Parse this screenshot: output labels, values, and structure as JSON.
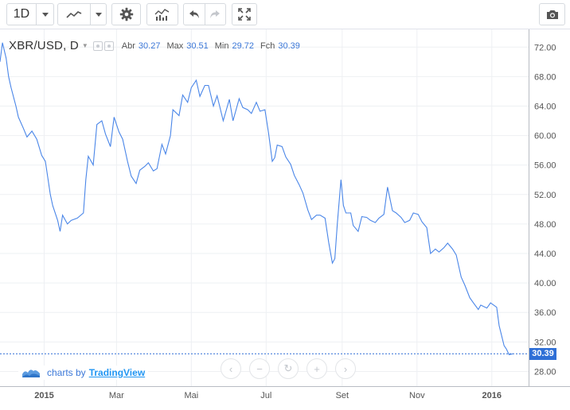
{
  "toolbar": {
    "interval": "1D",
    "icons": [
      "dropdown-caret-icon",
      "line-chart-icon",
      "dropdown-caret-icon",
      "settings-gear-icon",
      "indicators-icon",
      "undo-icon",
      "redo-icon",
      "fullscreen-icon",
      "camera-icon"
    ]
  },
  "legend": {
    "symbol": "XBR/USD, D",
    "open_label": "Abr",
    "open_value": "30.27",
    "high_label": "Max",
    "high_value": "30.51",
    "low_label": "Min",
    "low_value": "29.72",
    "close_label": "Fch",
    "close_value": "30.39"
  },
  "branding": {
    "prefix": "charts by",
    "name": "TradingView"
  },
  "last_price": "30.39",
  "colors": {
    "line": "#4a86e8",
    "price_tag": "#2f6fd6",
    "grid": "#eef0f3"
  },
  "chart_data": {
    "type": "line",
    "title": "XBR/USD, D",
    "xlabel": "",
    "ylabel": "",
    "ylim": [
      26.0,
      74.4
    ],
    "y_ticks": [
      "72.00",
      "68.00",
      "64.00",
      "60.00",
      "56.00",
      "52.00",
      "48.00",
      "44.00",
      "40.00",
      "36.00",
      "32.00",
      "28.00"
    ],
    "x_ticks": [
      {
        "label": "2015",
        "x": "2015-01-01",
        "bold": true
      },
      {
        "label": "Mar",
        "x": "2015-03-01",
        "bold": false
      },
      {
        "label": "Mai",
        "x": "2015-05-01",
        "bold": false
      },
      {
        "label": "Jul",
        "x": "2015-07-01",
        "bold": false
      },
      {
        "label": "Set",
        "x": "2015-09-01",
        "bold": false
      },
      {
        "label": "Nov",
        "x": "2015-11-01",
        "bold": false
      },
      {
        "label": "2016",
        "x": "2016-01-01",
        "bold": true
      }
    ],
    "x_range": [
      "2014-11-26",
      "2016-01-31"
    ],
    "grid": true,
    "series": [
      {
        "values": [
          [
            "2014-11-26",
            70.0
          ],
          [
            "2014-11-28",
            72.6
          ],
          [
            "2014-12-01",
            70.5
          ],
          [
            "2014-12-03",
            68.0
          ],
          [
            "2014-12-05",
            66.5
          ],
          [
            "2014-12-09",
            64.0
          ],
          [
            "2014-12-11",
            62.5
          ],
          [
            "2014-12-15",
            61.0
          ],
          [
            "2014-12-18",
            59.8
          ],
          [
            "2014-12-22",
            60.6
          ],
          [
            "2014-12-26",
            59.5
          ],
          [
            "2014-12-30",
            57.3
          ],
          [
            "2015-01-02",
            56.5
          ],
          [
            "2015-01-06",
            52.0
          ],
          [
            "2015-01-08",
            50.5
          ],
          [
            "2015-01-12",
            48.5
          ],
          [
            "2015-01-14",
            47.0
          ],
          [
            "2015-01-16",
            49.2
          ],
          [
            "2015-01-20",
            48.0
          ],
          [
            "2015-01-23",
            48.5
          ],
          [
            "2015-01-28",
            48.8
          ],
          [
            "2015-02-02",
            49.5
          ],
          [
            "2015-02-04",
            54.0
          ],
          [
            "2015-02-06",
            57.2
          ],
          [
            "2015-02-10",
            56.0
          ],
          [
            "2015-02-13",
            61.5
          ],
          [
            "2015-02-17",
            62.0
          ],
          [
            "2015-02-20",
            60.2
          ],
          [
            "2015-02-24",
            58.5
          ],
          [
            "2015-02-27",
            62.5
          ],
          [
            "2015-03-03",
            60.5
          ],
          [
            "2015-03-06",
            59.5
          ],
          [
            "2015-03-10",
            56.5
          ],
          [
            "2015-03-13",
            54.5
          ],
          [
            "2015-03-17",
            53.5
          ],
          [
            "2015-03-20",
            55.3
          ],
          [
            "2015-03-24",
            55.8
          ],
          [
            "2015-03-27",
            56.3
          ],
          [
            "2015-03-31",
            55.2
          ],
          [
            "2015-04-03",
            55.5
          ],
          [
            "2015-04-07",
            58.8
          ],
          [
            "2015-04-10",
            57.5
          ],
          [
            "2015-04-14",
            60.0
          ],
          [
            "2015-04-16",
            63.5
          ],
          [
            "2015-04-21",
            62.7
          ],
          [
            "2015-04-24",
            65.5
          ],
          [
            "2015-04-28",
            64.5
          ],
          [
            "2015-05-01",
            66.5
          ],
          [
            "2015-05-05",
            67.5
          ],
          [
            "2015-05-08",
            65.3
          ],
          [
            "2015-05-12",
            66.8
          ],
          [
            "2015-05-15",
            66.8
          ],
          [
            "2015-05-19",
            64.0
          ],
          [
            "2015-05-22",
            65.4
          ],
          [
            "2015-05-27",
            62.0
          ],
          [
            "2015-06-01",
            64.9
          ],
          [
            "2015-06-04",
            62.0
          ],
          [
            "2015-06-09",
            65.0
          ],
          [
            "2015-06-12",
            63.8
          ],
          [
            "2015-06-16",
            63.5
          ],
          [
            "2015-06-19",
            63.0
          ],
          [
            "2015-06-23",
            64.5
          ],
          [
            "2015-06-26",
            63.3
          ],
          [
            "2015-06-30",
            63.5
          ],
          [
            "2015-07-03",
            60.3
          ],
          [
            "2015-07-06",
            56.5
          ],
          [
            "2015-07-08",
            57.0
          ],
          [
            "2015-07-10",
            58.7
          ],
          [
            "2015-07-14",
            58.5
          ],
          [
            "2015-07-17",
            57.1
          ],
          [
            "2015-07-21",
            56.1
          ],
          [
            "2015-07-24",
            54.6
          ],
          [
            "2015-07-28",
            53.3
          ],
          [
            "2015-07-31",
            52.2
          ],
          [
            "2015-08-04",
            49.9
          ],
          [
            "2015-08-07",
            48.6
          ],
          [
            "2015-08-11",
            49.2
          ],
          [
            "2015-08-14",
            49.2
          ],
          [
            "2015-08-18",
            48.8
          ],
          [
            "2015-08-21",
            45.5
          ],
          [
            "2015-08-24",
            42.7
          ],
          [
            "2015-08-26",
            43.3
          ],
          [
            "2015-08-28",
            48.0
          ],
          [
            "2015-08-31",
            54.0
          ],
          [
            "2015-09-02",
            50.5
          ],
          [
            "2015-09-04",
            49.5
          ],
          [
            "2015-09-08",
            49.5
          ],
          [
            "2015-09-10",
            47.8
          ],
          [
            "2015-09-14",
            47.0
          ],
          [
            "2015-09-17",
            49.0
          ],
          [
            "2015-09-21",
            48.9
          ],
          [
            "2015-09-24",
            48.5
          ],
          [
            "2015-09-28",
            48.2
          ],
          [
            "2015-10-01",
            48.8
          ],
          [
            "2015-10-05",
            49.3
          ],
          [
            "2015-10-08",
            53.0
          ],
          [
            "2015-10-12",
            49.8
          ],
          [
            "2015-10-15",
            49.5
          ],
          [
            "2015-10-19",
            48.9
          ],
          [
            "2015-10-22",
            48.2
          ],
          [
            "2015-10-26",
            48.5
          ],
          [
            "2015-10-29",
            49.5
          ],
          [
            "2015-11-02",
            49.3
          ],
          [
            "2015-11-05",
            48.3
          ],
          [
            "2015-11-09",
            47.5
          ],
          [
            "2015-11-12",
            44.0
          ],
          [
            "2015-11-16",
            44.6
          ],
          [
            "2015-11-19",
            44.2
          ],
          [
            "2015-11-23",
            44.8
          ],
          [
            "2015-11-26",
            45.4
          ],
          [
            "2015-11-30",
            44.6
          ],
          [
            "2015-12-03",
            43.8
          ],
          [
            "2015-12-07",
            40.8
          ],
          [
            "2015-12-10",
            39.7
          ],
          [
            "2015-12-14",
            38.0
          ],
          [
            "2015-12-17",
            37.3
          ],
          [
            "2015-12-21",
            36.4
          ],
          [
            "2015-12-23",
            37.0
          ],
          [
            "2015-12-28",
            36.6
          ],
          [
            "2015-12-31",
            37.3
          ],
          [
            "2016-01-05",
            36.7
          ],
          [
            "2016-01-07",
            34.2
          ],
          [
            "2016-01-11",
            31.5
          ],
          [
            "2016-01-13",
            31.0
          ],
          [
            "2016-01-15",
            30.27
          ],
          [
            "2016-01-18",
            30.39
          ]
        ]
      }
    ]
  }
}
